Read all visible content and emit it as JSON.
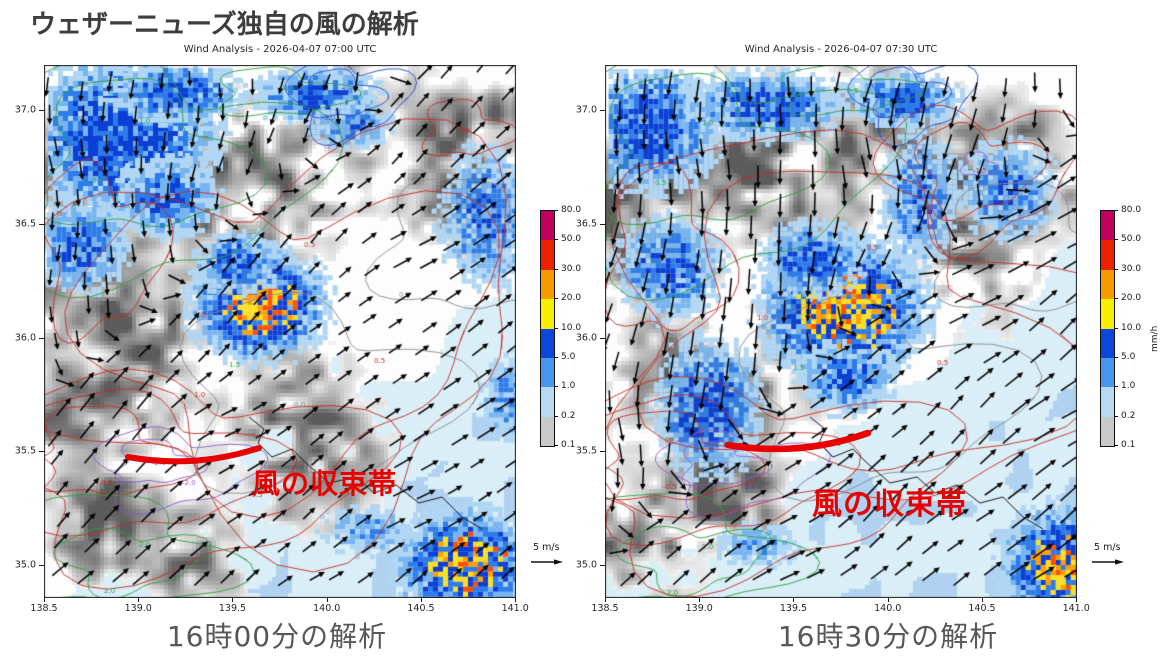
{
  "page": {
    "title": "ウェザーニューズ独自の風の解析"
  },
  "maps": [
    {
      "title": "Wind Analysis - 2026-04-07 07:00 UTC",
      "caption": "16時00分の解析",
      "annotation": "風の収束帯",
      "wind_legend": "5 m/s",
      "x_ticks": [
        "138.5",
        "139.0",
        "139.5",
        "140.0",
        "140.5",
        "141.0"
      ],
      "y_ticks": [
        "37.0",
        "36.5",
        "36.0",
        "35.5",
        "35.0"
      ]
    },
    {
      "title": "Wind Analysis - 2026-04-07 07:30 UTC",
      "caption": "16時30分の解析",
      "annotation": "風の収束帯",
      "wind_legend": "5 m/s",
      "x_ticks": [
        "138.5",
        "139.0",
        "139.5",
        "140.0",
        "140.5",
        "141.0"
      ],
      "y_ticks": [
        "37.0",
        "36.5",
        "36.0",
        "35.5",
        "35.0"
      ]
    }
  ],
  "colorbar": {
    "unit": "mm/h",
    "ticks_top_to_bottom": [
      "80.0",
      "50.0",
      "30.0",
      "20.0",
      "10.0",
      "5.0",
      "1.0",
      "0.2",
      "0.1"
    ],
    "segment_colors_bottom_to_top": [
      "#c9c9c9",
      "#b7d9f2",
      "#4598ec",
      "#0b46dd",
      "#f8ee00",
      "#f89b00",
      "#ed2100",
      "#bf0060"
    ]
  },
  "contour_labels": [
    "0.5",
    "1.0",
    "1.5",
    "2.0",
    "3.0",
    "0.0",
    "-0.5",
    "-1.0",
    "-1.5",
    "-2.0",
    "-2.5"
  ],
  "colors": {
    "annotation_red": "#e60000",
    "title_gray": "#3d3d3d",
    "caption_gray": "#575757",
    "arrow_black": "#000000"
  }
}
